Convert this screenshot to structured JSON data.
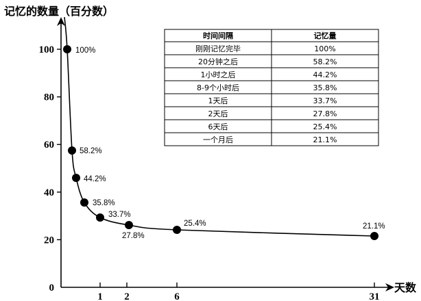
{
  "chart_data": {
    "type": "line",
    "title": "记忆的数量（百分数）",
    "xlabel": "天数",
    "ylabel": "记忆的数量（百分数）",
    "xlim": [
      0,
      31
    ],
    "ylim": [
      0,
      100
    ],
    "x_ticks": [
      1,
      2,
      6,
      31
    ],
    "y_ticks": [
      0,
      20,
      40,
      60,
      80,
      100
    ],
    "grid": false,
    "points": [
      {
        "x": 0,
        "y": 100,
        "label": "100%"
      },
      {
        "x": 0.0139,
        "y": 58.2,
        "label": "58.2%"
      },
      {
        "x": 0.0417,
        "y": 44.2,
        "label": "44.2%"
      },
      {
        "x": 0.35,
        "y": 35.8,
        "label": "35.8%"
      },
      {
        "x": 1,
        "y": 33.7,
        "label": "33.7%"
      },
      {
        "x": 2,
        "y": 27.8,
        "label": "27.8%"
      },
      {
        "x": 6,
        "y": 25.4,
        "label": "25.4%"
      },
      {
        "x": 31,
        "y": 21.1,
        "label": "21.1%"
      }
    ],
    "table": {
      "headers": [
        "时间间隔",
        "记忆量"
      ],
      "rows": [
        [
          "刚刚记忆完毕",
          "100%"
        ],
        [
          "20分钟之后",
          "58.2%"
        ],
        [
          "1小时之后",
          "44.2%"
        ],
        [
          "8-9个小时后",
          "35.8%"
        ],
        [
          "1天后",
          "33.7%"
        ],
        [
          "2天后",
          "27.8%"
        ],
        [
          "6天后",
          "25.4%"
        ],
        [
          "一个月后",
          "21.1%"
        ]
      ]
    }
  }
}
